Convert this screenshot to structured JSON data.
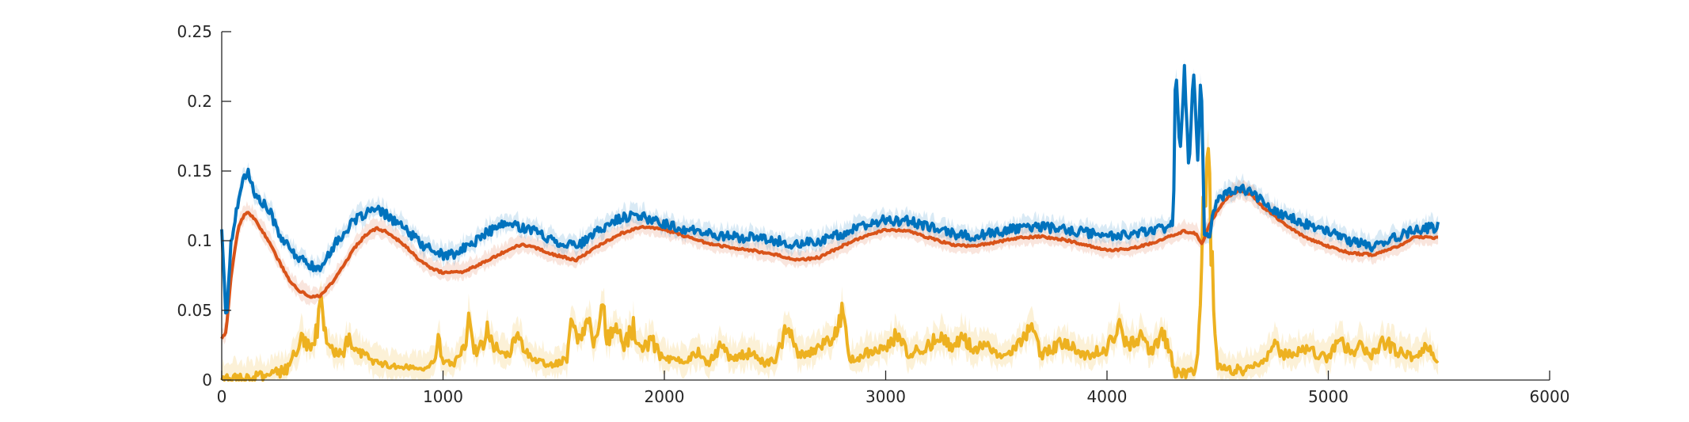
{
  "chart_data": {
    "type": "line",
    "title": "",
    "xlabel": "",
    "ylabel": "",
    "xlim": [
      0,
      6000
    ],
    "ylim": [
      0,
      0.25
    ],
    "x_ticks": [
      0,
      1000,
      2000,
      3000,
      4000,
      5000,
      6000
    ],
    "y_ticks": [
      0,
      0.05,
      0.1,
      0.15,
      0.2,
      0.25
    ],
    "x_tick_labels": [
      "0",
      "1000",
      "2000",
      "3000",
      "4000",
      "5000",
      "6000"
    ],
    "y_tick_labels": [
      "0",
      "0.05",
      "0.1",
      "0.15",
      "0.2",
      "0.25"
    ],
    "grid": false,
    "legend": "none",
    "x_max_data": 5500,
    "series": [
      {
        "color": "#0072BD",
        "band_color": "#0072BD",
        "values": [
          [
            0,
            0.11
          ],
          [
            20,
            0.04
          ],
          [
            40,
            0.095
          ],
          [
            60,
            0.115
          ],
          [
            80,
            0.135
          ],
          [
            100,
            0.145
          ],
          [
            120,
            0.15
          ],
          [
            150,
            0.132
          ],
          [
            180,
            0.128
          ],
          [
            220,
            0.12
          ],
          [
            260,
            0.105
          ],
          [
            300,
            0.095
          ],
          [
            350,
            0.087
          ],
          [
            400,
            0.083
          ],
          [
            440,
            0.078
          ],
          [
            460,
            0.085
          ],
          [
            500,
            0.095
          ],
          [
            550,
            0.105
          ],
          [
            600,
            0.114
          ],
          [
            650,
            0.12
          ],
          [
            700,
            0.122
          ],
          [
            750,
            0.118
          ],
          [
            800,
            0.112
          ],
          [
            850,
            0.105
          ],
          [
            900,
            0.098
          ],
          [
            950,
            0.093
          ],
          [
            1000,
            0.09
          ],
          [
            1050,
            0.09
          ],
          [
            1100,
            0.095
          ],
          [
            1150,
            0.1
          ],
          [
            1200,
            0.106
          ],
          [
            1250,
            0.11
          ],
          [
            1300,
            0.112
          ],
          [
            1350,
            0.11
          ],
          [
            1400,
            0.108
          ],
          [
            1450,
            0.104
          ],
          [
            1500,
            0.1
          ],
          [
            1550,
            0.098
          ],
          [
            1600,
            0.097
          ],
          [
            1650,
            0.1
          ],
          [
            1700,
            0.107
          ],
          [
            1750,
            0.112
          ],
          [
            1800,
            0.116
          ],
          [
            1850,
            0.118
          ],
          [
            1900,
            0.117
          ],
          [
            1950,
            0.115
          ],
          [
            2000,
            0.112
          ],
          [
            2100,
            0.108
          ],
          [
            2200,
            0.105
          ],
          [
            2300,
            0.103
          ],
          [
            2400,
            0.102
          ],
          [
            2500,
            0.1
          ],
          [
            2600,
            0.097
          ],
          [
            2700,
            0.1
          ],
          [
            2800,
            0.105
          ],
          [
            2900,
            0.11
          ],
          [
            3000,
            0.115
          ],
          [
            3100,
            0.114
          ],
          [
            3200,
            0.11
          ],
          [
            3300,
            0.105
          ],
          [
            3400,
            0.103
          ],
          [
            3500,
            0.106
          ],
          [
            3600,
            0.109
          ],
          [
            3700,
            0.11
          ],
          [
            3800,
            0.108
          ],
          [
            3900,
            0.106
          ],
          [
            4000,
            0.104
          ],
          [
            4100,
            0.104
          ],
          [
            4200,
            0.108
          ],
          [
            4280,
            0.11
          ],
          [
            4300,
            0.112
          ],
          [
            4310,
            0.23
          ],
          [
            4330,
            0.16
          ],
          [
            4350,
            0.225
          ],
          [
            4370,
            0.15
          ],
          [
            4390,
            0.225
          ],
          [
            4410,
            0.16
          ],
          [
            4425,
            0.222
          ],
          [
            4440,
            0.105
          ],
          [
            4460,
            0.102
          ],
          [
            4480,
            0.12
          ],
          [
            4500,
            0.13
          ],
          [
            4550,
            0.135
          ],
          [
            4600,
            0.138
          ],
          [
            4650,
            0.135
          ],
          [
            4700,
            0.128
          ],
          [
            4800,
            0.118
          ],
          [
            4900,
            0.112
          ],
          [
            5000,
            0.106
          ],
          [
            5100,
            0.1
          ],
          [
            5200,
            0.096
          ],
          [
            5300,
            0.102
          ],
          [
            5400,
            0.108
          ],
          [
            5500,
            0.11
          ]
        ]
      },
      {
        "color": "#D95319",
        "band_color": "#D95319",
        "values": [
          [
            0,
            0.03
          ],
          [
            20,
            0.035
          ],
          [
            40,
            0.07
          ],
          [
            60,
            0.095
          ],
          [
            80,
            0.112
          ],
          [
            100,
            0.118
          ],
          [
            120,
            0.12
          ],
          [
            150,
            0.115
          ],
          [
            200,
            0.103
          ],
          [
            250,
            0.088
          ],
          [
            300,
            0.073
          ],
          [
            350,
            0.064
          ],
          [
            400,
            0.06
          ],
          [
            440,
            0.06
          ],
          [
            500,
            0.07
          ],
          [
            550,
            0.082
          ],
          [
            600,
            0.095
          ],
          [
            650,
            0.104
          ],
          [
            700,
            0.109
          ],
          [
            750,
            0.106
          ],
          [
            800,
            0.1
          ],
          [
            850,
            0.093
          ],
          [
            900,
            0.085
          ],
          [
            950,
            0.08
          ],
          [
            1000,
            0.077
          ],
          [
            1100,
            0.078
          ],
          [
            1200,
            0.086
          ],
          [
            1300,
            0.094
          ],
          [
            1350,
            0.097
          ],
          [
            1400,
            0.096
          ],
          [
            1500,
            0.09
          ],
          [
            1600,
            0.086
          ],
          [
            1700,
            0.096
          ],
          [
            1800,
            0.105
          ],
          [
            1900,
            0.11
          ],
          [
            2000,
            0.108
          ],
          [
            2100,
            0.103
          ],
          [
            2200,
            0.098
          ],
          [
            2300,
            0.095
          ],
          [
            2400,
            0.093
          ],
          [
            2500,
            0.09
          ],
          [
            2600,
            0.086
          ],
          [
            2700,
            0.088
          ],
          [
            2800,
            0.096
          ],
          [
            2900,
            0.103
          ],
          [
            3000,
            0.108
          ],
          [
            3100,
            0.107
          ],
          [
            3200,
            0.102
          ],
          [
            3300,
            0.097
          ],
          [
            3400,
            0.096
          ],
          [
            3500,
            0.099
          ],
          [
            3600,
            0.102
          ],
          [
            3700,
            0.103
          ],
          [
            3800,
            0.101
          ],
          [
            3900,
            0.097
          ],
          [
            4000,
            0.093
          ],
          [
            4100,
            0.094
          ],
          [
            4200,
            0.098
          ],
          [
            4300,
            0.104
          ],
          [
            4350,
            0.107
          ],
          [
            4400,
            0.105
          ],
          [
            4430,
            0.098
          ],
          [
            4460,
            0.11
          ],
          [
            4500,
            0.122
          ],
          [
            4550,
            0.132
          ],
          [
            4600,
            0.136
          ],
          [
            4650,
            0.133
          ],
          [
            4700,
            0.125
          ],
          [
            4800,
            0.112
          ],
          [
            4900,
            0.102
          ],
          [
            5000,
            0.096
          ],
          [
            5100,
            0.091
          ],
          [
            5200,
            0.09
          ],
          [
            5300,
            0.095
          ],
          [
            5400,
            0.103
          ],
          [
            5500,
            0.102
          ]
        ]
      },
      {
        "color": "#EDB120",
        "band_color": "#EDB120",
        "values": [
          [
            0,
            0.0
          ],
          [
            50,
            0.001
          ],
          [
            100,
            0.002
          ],
          [
            150,
            0.002
          ],
          [
            200,
            0.003
          ],
          [
            250,
            0.005
          ],
          [
            300,
            0.008
          ],
          [
            330,
            0.02
          ],
          [
            360,
            0.028
          ],
          [
            400,
            0.024
          ],
          [
            430,
            0.035
          ],
          [
            450,
            0.06
          ],
          [
            470,
            0.03
          ],
          [
            500,
            0.02
          ],
          [
            550,
            0.018
          ],
          [
            570,
            0.03
          ],
          [
            600,
            0.02
          ],
          [
            650,
            0.018
          ],
          [
            700,
            0.012
          ],
          [
            750,
            0.011
          ],
          [
            800,
            0.01
          ],
          [
            900,
            0.008
          ],
          [
            960,
            0.012
          ],
          [
            980,
            0.03
          ],
          [
            1000,
            0.012
          ],
          [
            1050,
            0.012
          ],
          [
            1100,
            0.025
          ],
          [
            1120,
            0.045
          ],
          [
            1140,
            0.02
          ],
          [
            1180,
            0.025
          ],
          [
            1200,
            0.04
          ],
          [
            1220,
            0.028
          ],
          [
            1260,
            0.018
          ],
          [
            1300,
            0.02
          ],
          [
            1340,
            0.038
          ],
          [
            1360,
            0.025
          ],
          [
            1400,
            0.015
          ],
          [
            1450,
            0.012
          ],
          [
            1500,
            0.011
          ],
          [
            1560,
            0.015
          ],
          [
            1580,
            0.05
          ],
          [
            1600,
            0.028
          ],
          [
            1630,
            0.035
          ],
          [
            1660,
            0.045
          ],
          [
            1680,
            0.025
          ],
          [
            1720,
            0.06
          ],
          [
            1740,
            0.03
          ],
          [
            1780,
            0.035
          ],
          [
            1820,
            0.025
          ],
          [
            1860,
            0.038
          ],
          [
            1900,
            0.02
          ],
          [
            1940,
            0.03
          ],
          [
            1980,
            0.018
          ],
          [
            2000,
            0.015
          ],
          [
            2100,
            0.013
          ],
          [
            2150,
            0.02
          ],
          [
            2200,
            0.012
          ],
          [
            2260,
            0.025
          ],
          [
            2300,
            0.015
          ],
          [
            2400,
            0.02
          ],
          [
            2450,
            0.012
          ],
          [
            2500,
            0.014
          ],
          [
            2560,
            0.04
          ],
          [
            2600,
            0.018
          ],
          [
            2700,
            0.022
          ],
          [
            2760,
            0.03
          ],
          [
            2800,
            0.048
          ],
          [
            2840,
            0.015
          ],
          [
            2900,
            0.018
          ],
          [
            2950,
            0.022
          ],
          [
            3000,
            0.02
          ],
          [
            3050,
            0.035
          ],
          [
            3100,
            0.018
          ],
          [
            3200,
            0.025
          ],
          [
            3250,
            0.035
          ],
          [
            3300,
            0.02
          ],
          [
            3350,
            0.032
          ],
          [
            3400,
            0.022
          ],
          [
            3450,
            0.03
          ],
          [
            3500,
            0.018
          ],
          [
            3600,
            0.025
          ],
          [
            3660,
            0.038
          ],
          [
            3700,
            0.018
          ],
          [
            3800,
            0.028
          ],
          [
            3900,
            0.018
          ],
          [
            4000,
            0.022
          ],
          [
            4050,
            0.038
          ],
          [
            4100,
            0.025
          ],
          [
            4150,
            0.03
          ],
          [
            4200,
            0.02
          ],
          [
            4250,
            0.035
          ],
          [
            4290,
            0.018
          ],
          [
            4300,
            0.006
          ],
          [
            4350,
            0.005
          ],
          [
            4400,
            0.006
          ],
          [
            4420,
            0.04
          ],
          [
            4440,
            0.14
          ],
          [
            4460,
            0.145
          ],
          [
            4480,
            0.06
          ],
          [
            4500,
            0.01
          ],
          [
            4550,
            0.008
          ],
          [
            4600,
            0.007
          ],
          [
            4700,
            0.012
          ],
          [
            4760,
            0.025
          ],
          [
            4800,
            0.018
          ],
          [
            4900,
            0.022
          ],
          [
            5000,
            0.015
          ],
          [
            5050,
            0.03
          ],
          [
            5100,
            0.02
          ],
          [
            5150,
            0.025
          ],
          [
            5200,
            0.018
          ],
          [
            5250,
            0.028
          ],
          [
            5300,
            0.022
          ],
          [
            5350,
            0.018
          ],
          [
            5400,
            0.015
          ],
          [
            5450,
            0.025
          ],
          [
            5500,
            0.012
          ]
        ]
      }
    ]
  }
}
